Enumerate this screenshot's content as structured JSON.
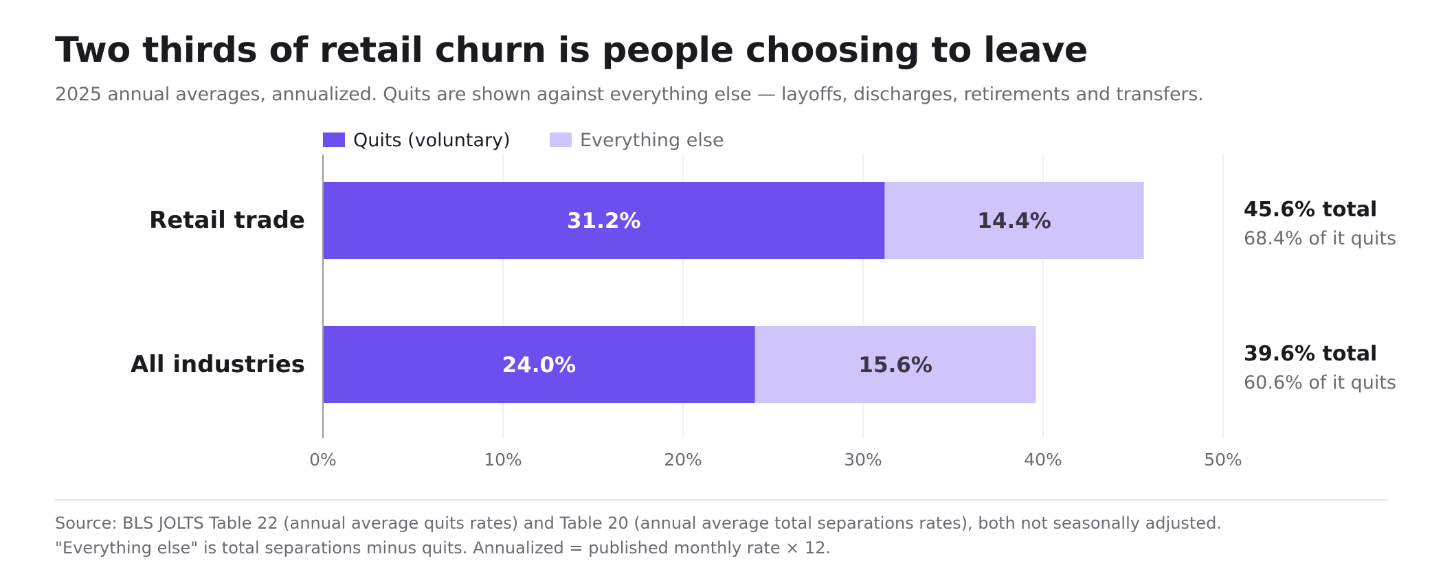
{
  "title": "Two thirds of retail churn is people choosing to leave",
  "subtitle": "2025 annual averages, annualized. Quits are shown against everything else — layoffs, discharges, retirements and transfers.",
  "source": {
    "line1": "Source: BLS JOLTS Table 22 (annual average quits rates) and Table 20 (annual average total separations rates), both not seasonally adjusted.",
    "line2": "\"Everything else\" is total separations minus quits. Annualized = published monthly rate × 12."
  },
  "colors": {
    "quits": "#6d4eef",
    "else": "#cfc5fb",
    "quits_label": "#ffffff",
    "else_label": "#3a3548"
  },
  "chart_data": {
    "type": "bar",
    "orientation": "horizontal",
    "stacked": true,
    "categories": [
      "Retail trade",
      "All industries"
    ],
    "series": [
      {
        "name": "Quits (voluntary)",
        "values": [
          31.2,
          24.0
        ],
        "labels": [
          "31.2%",
          "24.0%"
        ]
      },
      {
        "name": "Everything else",
        "values": [
          14.4,
          15.6
        ],
        "labels": [
          "14.4%",
          "15.6%"
        ]
      }
    ],
    "xlim": [
      0,
      50
    ],
    "xticks": [
      0,
      10,
      20,
      30,
      40,
      50
    ],
    "xtick_labels": [
      "0%",
      "10%",
      "20%",
      "30%",
      "40%",
      "50%"
    ],
    "grid": true,
    "legend": "top-left",
    "annotations": [
      {
        "total": "45.6% total",
        "share": "68.4% of it quits"
      },
      {
        "total": "39.6% total",
        "share": "60.6% of it quits"
      }
    ]
  }
}
